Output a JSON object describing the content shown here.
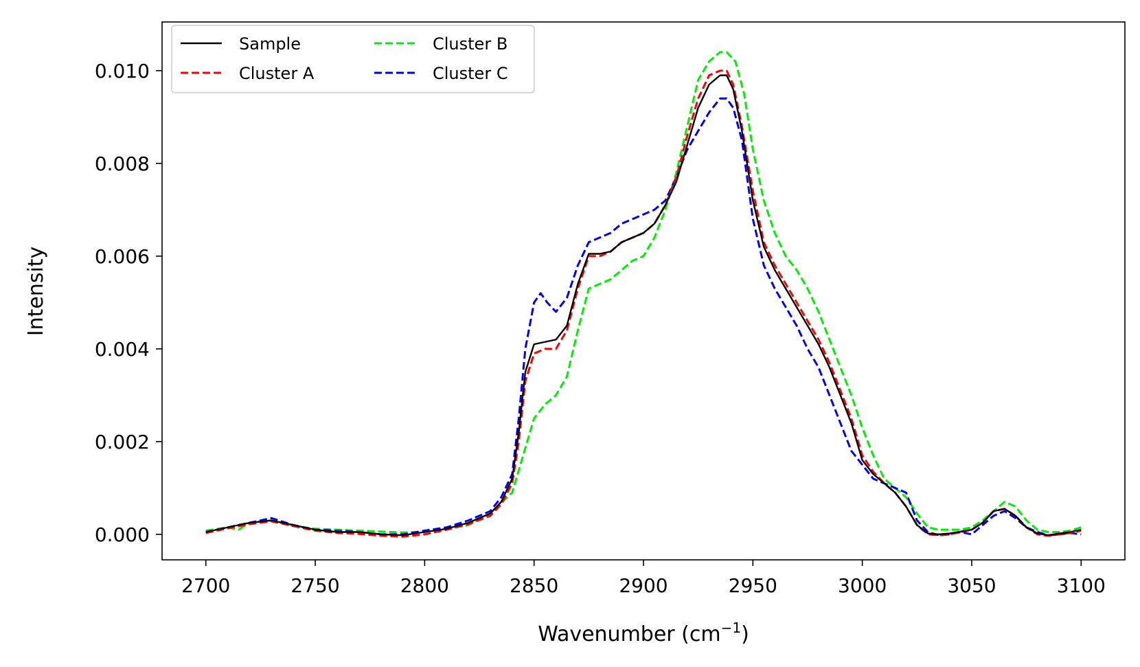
{
  "chart_data": {
    "type": "line",
    "title": "",
    "xlabel": "Wavenumber (cm",
    "xlabel_sup": "−1",
    "xlabel_close": ")",
    "ylabel": "Intensity",
    "xlim": [
      2680,
      3120
    ],
    "ylim": [
      -0.00055,
      0.01105
    ],
    "xticks": [
      2700,
      2750,
      2800,
      2850,
      2900,
      2950,
      3000,
      3050,
      3100
    ],
    "yticks": [
      0.0,
      0.002,
      0.004,
      0.006,
      0.008,
      0.01
    ],
    "ytick_labels": [
      "0.000",
      "0.002",
      "0.004",
      "0.006",
      "0.008",
      "0.010"
    ],
    "grid": false,
    "legend": {
      "placement": "top-left",
      "columns": 2
    },
    "series": [
      {
        "name": "Sample",
        "color": "#000000",
        "dash": "solid",
        "x": [
          2700,
          2710,
          2720,
          2730,
          2740,
          2750,
          2760,
          2770,
          2780,
          2790,
          2800,
          2810,
          2820,
          2830,
          2835,
          2840,
          2843,
          2846,
          2850,
          2855,
          2860,
          2865,
          2870,
          2875,
          2880,
          2885,
          2890,
          2895,
          2900,
          2905,
          2910,
          2915,
          2920,
          2925,
          2930,
          2935,
          2938,
          2941,
          2945,
          2950,
          2955,
          2960,
          2965,
          2970,
          2975,
          2980,
          2985,
          2990,
          2995,
          3000,
          3005,
          3010,
          3015,
          3020,
          3025,
          3030,
          3035,
          3040,
          3045,
          3050,
          3055,
          3060,
          3065,
          3070,
          3075,
          3080,
          3085,
          3090,
          3095,
          3100
        ],
        "y": [
          5e-05,
          0.00015,
          0.00025,
          0.0003,
          0.0002,
          0.0001,
          5e-05,
          5e-05,
          0.0,
          -2e-05,
          5e-05,
          0.00012,
          0.00025,
          0.00045,
          0.0007,
          0.0012,
          0.0022,
          0.0035,
          0.0041,
          0.00415,
          0.0042,
          0.0045,
          0.0054,
          0.00605,
          0.00605,
          0.0061,
          0.0063,
          0.0064,
          0.0065,
          0.0067,
          0.0071,
          0.0076,
          0.0084,
          0.0092,
          0.0097,
          0.0099,
          0.0099,
          0.0096,
          0.0087,
          0.0072,
          0.0062,
          0.0057,
          0.0053,
          0.0049,
          0.0045,
          0.0041,
          0.0036,
          0.003,
          0.0024,
          0.0016,
          0.0013,
          0.0011,
          0.0009,
          0.0006,
          0.0002,
          2e-05,
          0.0,
          2e-05,
          6e-05,
          0.0001,
          0.00025,
          0.0005,
          0.00055,
          0.0004,
          0.00015,
          2e-05,
          -2e-05,
          2e-05,
          5e-05,
          0.0001
        ]
      },
      {
        "name": "Cluster A",
        "color": "#ff0000",
        "dash": "dashed",
        "x": [
          2700,
          2710,
          2720,
          2730,
          2740,
          2750,
          2760,
          2770,
          2780,
          2790,
          2800,
          2810,
          2820,
          2830,
          2835,
          2840,
          2843,
          2846,
          2850,
          2855,
          2860,
          2865,
          2870,
          2875,
          2880,
          2885,
          2890,
          2895,
          2900,
          2905,
          2910,
          2915,
          2920,
          2925,
          2930,
          2935,
          2938,
          2941,
          2945,
          2950,
          2955,
          2960,
          2965,
          2970,
          2975,
          2980,
          2985,
          2990,
          2995,
          3000,
          3005,
          3010,
          3015,
          3020,
          3025,
          3030,
          3035,
          3040,
          3045,
          3050,
          3055,
          3060,
          3065,
          3070,
          3075,
          3080,
          3085,
          3090,
          3095,
          3100
        ],
        "y": [
          3e-05,
          0.00013,
          0.00022,
          0.00028,
          0.00018,
          8e-05,
          3e-05,
          1e-05,
          -3e-05,
          -5e-05,
          0.0,
          0.0001,
          0.00022,
          0.0004,
          0.00065,
          0.0011,
          0.002,
          0.0033,
          0.0039,
          0.004,
          0.004,
          0.0044,
          0.0053,
          0.006,
          0.006,
          0.0061,
          0.0063,
          0.0064,
          0.0065,
          0.0067,
          0.0071,
          0.0077,
          0.0086,
          0.0094,
          0.0099,
          0.01,
          0.01,
          0.0097,
          0.0088,
          0.0074,
          0.0063,
          0.0058,
          0.0054,
          0.005,
          0.0046,
          0.0042,
          0.0037,
          0.0031,
          0.0025,
          0.0017,
          0.00135,
          0.0011,
          0.0009,
          0.0006,
          0.0002,
          0.0,
          -2e-05,
          0.0,
          5e-05,
          0.0001,
          0.00025,
          0.0005,
          0.00055,
          0.0004,
          0.00015,
          0.0,
          -3e-05,
          0.0,
          3e-05,
          8e-05
        ]
      },
      {
        "name": "Cluster B",
        "color": "#00ee00",
        "dash": "dashed",
        "x": [
          2700,
          2710,
          2715,
          2720,
          2730,
          2740,
          2750,
          2760,
          2770,
          2780,
          2790,
          2800,
          2810,
          2820,
          2830,
          2840,
          2845,
          2850,
          2855,
          2860,
          2865,
          2870,
          2875,
          2880,
          2885,
          2890,
          2895,
          2900,
          2905,
          2910,
          2915,
          2920,
          2925,
          2930,
          2935,
          2938,
          2942,
          2946,
          2950,
          2955,
          2960,
          2965,
          2970,
          2975,
          2980,
          2985,
          2990,
          2995,
          3000,
          3005,
          3010,
          3015,
          3020,
          3025,
          3030,
          3035,
          3040,
          3045,
          3050,
          3055,
          3060,
          3065,
          3070,
          3075,
          3080,
          3085,
          3090,
          3095,
          3100
        ],
        "y": [
          8e-05,
          0.00015,
          0.0001,
          0.00025,
          0.0003,
          0.00018,
          0.00012,
          0.0001,
          8e-05,
          6e-05,
          4e-05,
          5e-05,
          0.00012,
          0.0002,
          0.00045,
          0.0009,
          0.0017,
          0.0025,
          0.0028,
          0.003,
          0.0034,
          0.0044,
          0.0053,
          0.0054,
          0.0055,
          0.0057,
          0.0059,
          0.006,
          0.0064,
          0.007,
          0.0078,
          0.0088,
          0.0098,
          0.0102,
          0.0104,
          0.0104,
          0.0102,
          0.0095,
          0.0083,
          0.0072,
          0.0065,
          0.006,
          0.0057,
          0.0053,
          0.0048,
          0.0042,
          0.0036,
          0.003,
          0.0023,
          0.0017,
          0.0012,
          0.001,
          0.0008,
          0.00045,
          0.00015,
          0.0001,
          0.0001,
          0.0001,
          0.00015,
          0.0003,
          0.0005,
          0.0007,
          0.0006,
          0.0003,
          0.0001,
          5e-05,
          5e-05,
          8e-05,
          0.00015
        ]
      },
      {
        "name": "Cluster C",
        "color": "#0000ee",
        "dash": "dashed",
        "x": [
          2700,
          2710,
          2720,
          2730,
          2740,
          2750,
          2760,
          2770,
          2780,
          2790,
          2800,
          2810,
          2820,
          2830,
          2835,
          2840,
          2843,
          2846,
          2850,
          2853,
          2856,
          2860,
          2865,
          2870,
          2875,
          2880,
          2885,
          2890,
          2895,
          2900,
          2905,
          2910,
          2915,
          2920,
          2925,
          2930,
          2935,
          2938,
          2941,
          2945,
          2950,
          2955,
          2960,
          2965,
          2970,
          2975,
          2980,
          2985,
          2990,
          2995,
          3000,
          3005,
          3010,
          3015,
          3020,
          3025,
          3030,
          3035,
          3040,
          3045,
          3050,
          3055,
          3060,
          3065,
          3070,
          3075,
          3080,
          3085,
          3090,
          3095,
          3100
        ],
        "y": [
          5e-05,
          0.00015,
          0.00025,
          0.00035,
          0.0002,
          0.0001,
          8e-05,
          5e-05,
          0.0,
          0.0,
          8e-05,
          0.00015,
          0.0003,
          0.0005,
          0.0008,
          0.0013,
          0.0025,
          0.004,
          0.005,
          0.0052,
          0.005,
          0.0048,
          0.0051,
          0.0058,
          0.0063,
          0.0064,
          0.0065,
          0.0067,
          0.0068,
          0.0069,
          0.007,
          0.0072,
          0.0077,
          0.0083,
          0.0087,
          0.0091,
          0.0094,
          0.0094,
          0.0092,
          0.0085,
          0.0068,
          0.0058,
          0.0053,
          0.0049,
          0.0045,
          0.004,
          0.0036,
          0.003,
          0.0024,
          0.0018,
          0.0015,
          0.0012,
          0.0011,
          0.001,
          0.0009,
          0.0003,
          5e-05,
          -2e-05,
          0.0,
          5e-05,
          0.0,
          0.0002,
          0.0004,
          0.0005,
          0.00035,
          0.00015,
          5e-05,
          -2e-05,
          0.0,
          3e-05,
          0.0
        ]
      }
    ]
  }
}
